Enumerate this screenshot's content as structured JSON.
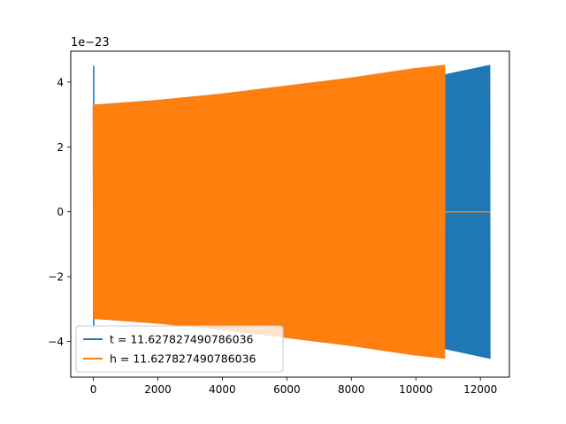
{
  "chart_data": {
    "type": "line",
    "title": "",
    "xlabel": "",
    "ylabel": "",
    "xlim": [
      -700,
      12900
    ],
    "ylim": [
      -5.1,
      4.95
    ],
    "x_ticks": [
      0,
      2000,
      4000,
      6000,
      8000,
      10000,
      12000
    ],
    "x_tick_labels": [
      "0",
      "2000",
      "4000",
      "6000",
      "8000",
      "10000",
      "12000"
    ],
    "y_ticks": [
      -4,
      -2,
      0,
      2,
      4
    ],
    "y_tick_labels": [
      "−4",
      "−2",
      "0",
      "2",
      "4"
    ],
    "y_offset_text": "1e−23",
    "grid": false,
    "legend_position": "lower-left",
    "series": [
      {
        "name": "t = 11.627827490786036",
        "color": "#1f77b4",
        "envelope_x": [
          0,
          2000,
          4000,
          6000,
          8000,
          10000,
          10900,
          12300
        ],
        "envelope_y": [
          3.35,
          3.5,
          3.7,
          3.95,
          4.2,
          4.5,
          4.3,
          4.6
        ],
        "initial_spike": [
          4.5,
          -3.6
        ]
      },
      {
        "name": "h = 11.627827490786036",
        "color": "#ff7f0e",
        "envelope_x": [
          0,
          2000,
          4000,
          6000,
          8000,
          10000,
          10900
        ],
        "envelope_y": [
          3.35,
          3.5,
          3.7,
          3.95,
          4.2,
          4.5,
          4.6
        ],
        "x_end": 10900,
        "flat_x": [
          10900,
          12300
        ],
        "flat_y": 0
      }
    ]
  }
}
